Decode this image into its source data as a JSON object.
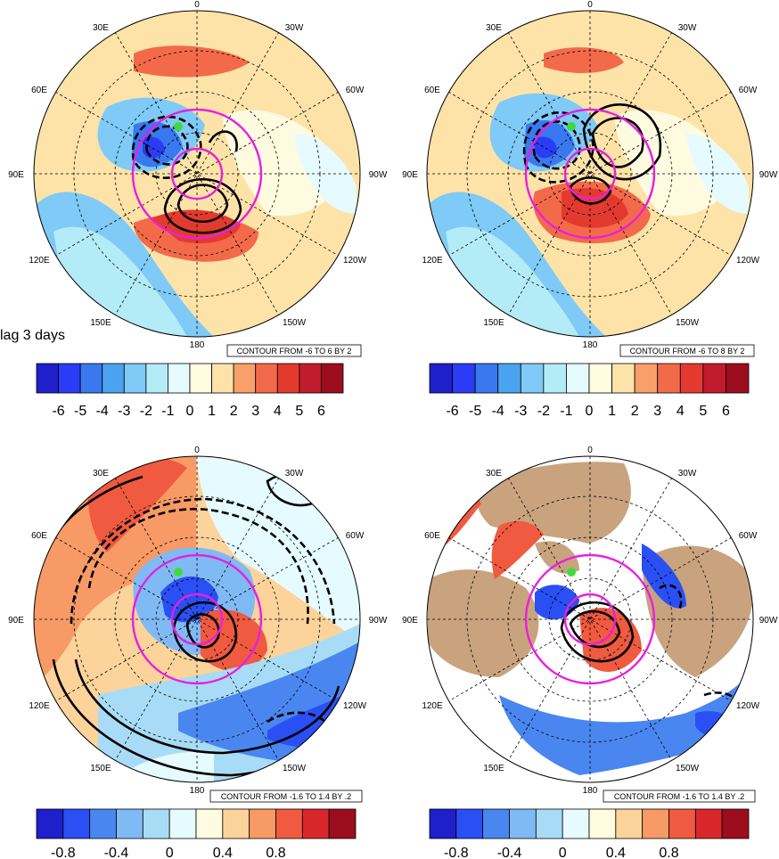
{
  "top_left_label": "lag 3 days",
  "polar_labels": {
    "top": "0",
    "upper_left": "30E",
    "upper_right": "30W",
    "mid_upper_left": "60E",
    "mid_upper_right": "60W",
    "left": "90E",
    "right": "90W",
    "mid_lower_left": "120E",
    "mid_lower_right": "120W",
    "lower_left": "150E",
    "lower_right": "150W",
    "bottom": "180"
  },
  "panels": [
    {
      "id": "top-left",
      "contour_info": "CONTOUR FROM -6 TO 6 BY 2",
      "colorbar": {
        "colors": [
          "#1f1fcc",
          "#2a3cf5",
          "#3a78f0",
          "#4aa3f0",
          "#7fcaf6",
          "#b3ebf7",
          "#e6fbff",
          "#fffbe0",
          "#fde3a8",
          "#f9a06a",
          "#f36a4a",
          "#e33a30",
          "#c11c2b",
          "#9c0d1e"
        ],
        "labels": [
          "-6",
          "-5",
          "-4",
          "-3",
          "-2",
          "-1",
          "0",
          "1",
          "2",
          "3",
          "4",
          "5",
          "6"
        ]
      }
    },
    {
      "id": "top-right",
      "contour_info": "CONTOUR FROM -6 TO 8 BY 2",
      "colorbar": {
        "colors": [
          "#1f1fcc",
          "#2a3cf5",
          "#3a78f0",
          "#4aa3f0",
          "#7fcaf6",
          "#b3ebf7",
          "#e6fbff",
          "#fffbe0",
          "#fde3a8",
          "#f9a06a",
          "#f36a4a",
          "#e33a30",
          "#c11c2b",
          "#9c0d1e"
        ],
        "labels": [
          "-6",
          "-5",
          "-4",
          "-3",
          "-2",
          "-1",
          "0",
          "1",
          "2",
          "3",
          "4",
          "5",
          "6"
        ]
      }
    },
    {
      "id": "bottom-left",
      "contour_info": "CONTOUR FROM -1.6 TO 1.4 BY .2",
      "colorbar": {
        "colors": [
          "#1f1fcc",
          "#2a4ff5",
          "#4a86f0",
          "#7fbaf5",
          "#a8dcf6",
          "#e6fbff",
          "#fffbe0",
          "#fcd39a",
          "#f79a66",
          "#ef5a40",
          "#d9262b",
          "#9c0d1e"
        ],
        "labels": [
          "-0.8",
          "-0.4",
          "0",
          "0.4",
          "0.8"
        ]
      }
    },
    {
      "id": "bottom-right",
      "contour_info": "CONTOUR FROM -1.6 TO 1.4 BY .2",
      "colorbar": {
        "colors": [
          "#1f1fcc",
          "#2a4ff5",
          "#4a86f0",
          "#7fbaf5",
          "#a8dcf6",
          "#e6fbff",
          "#fffbe0",
          "#fcd39a",
          "#f79a66",
          "#ef5a40",
          "#d9262b",
          "#9c0d1e"
        ],
        "labels": [
          "-0.8",
          "-0.4",
          "0",
          "0.4",
          "0.8"
        ]
      }
    }
  ],
  "style": {
    "pole_circle_color": "#e81fe0",
    "land_color": "#c8a37e",
    "marker_color": "#3ddc3d"
  }
}
